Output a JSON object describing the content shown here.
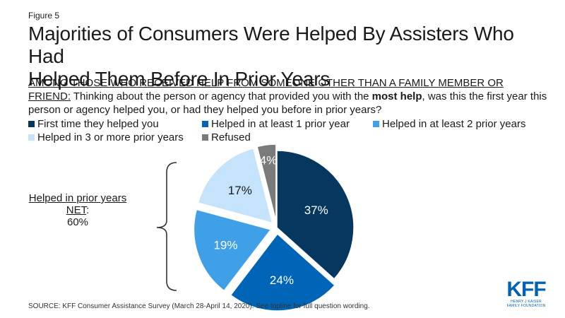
{
  "figure_label": "Figure 5",
  "title_line1": "Majorities of Consumers Were Helped By Assisters Who Had",
  "title_line2": "Helped Them Before In Prior Years",
  "question": {
    "subgroup_line1": "AMONG THOSE WHO RECEIVED HELP FROM SOMEONE OTHER THAN A FAMILY MEMBER OR",
    "subgroup_line2": "FRIEND:",
    "text_before": " Thinking about the person or agency that provided you with the ",
    "emphasis": "most help",
    "text_after": ", was this the first year this person or agency helped you, or had they helped you before in prior years?"
  },
  "net": {
    "label_line1": "Helped in prior years",
    "label_line2": "NET",
    "label_colon": ":",
    "value": "60%"
  },
  "source": "SOURCE: KFF Consumer Assistance Survey (March 28-April 14, 2020). See topline for full question wording.",
  "logo": {
    "text": "KFF",
    "sub_line1": "HENRY J KAISER",
    "sub_line2": "FAMILY FOUNDATION"
  },
  "chart_data": {
    "type": "pie",
    "start": "12 o'clock, clockwise",
    "exploded": [
      "Helped in at least 1 prior year",
      "Helped in at least 2 prior years",
      "Helped in 3 or more prior years",
      "Refused"
    ],
    "legend_position": "top",
    "slices": [
      {
        "label": "First time they helped you",
        "value": 37,
        "data_label": "37%",
        "color": "#06375e",
        "text_color": "#ffffff"
      },
      {
        "label": "Helped in at least 1 prior year",
        "value": 24,
        "data_label": "24%",
        "color": "#0065b7",
        "text_color": "#ffffff"
      },
      {
        "label": "Helped in at least 2 prior years",
        "value": 19,
        "data_label": "19%",
        "color": "#3fa0e7",
        "text_color": "#ffffff"
      },
      {
        "label": "Helped in 3 or more prior years",
        "value": 17,
        "data_label": "17%",
        "color": "#c5e4fb",
        "text_color": "#1a1a1a"
      },
      {
        "label": "Refused",
        "value": 4,
        "data_label": "4%",
        "color": "#7a7a7a",
        "text_color": "#ffffff"
      }
    ]
  }
}
